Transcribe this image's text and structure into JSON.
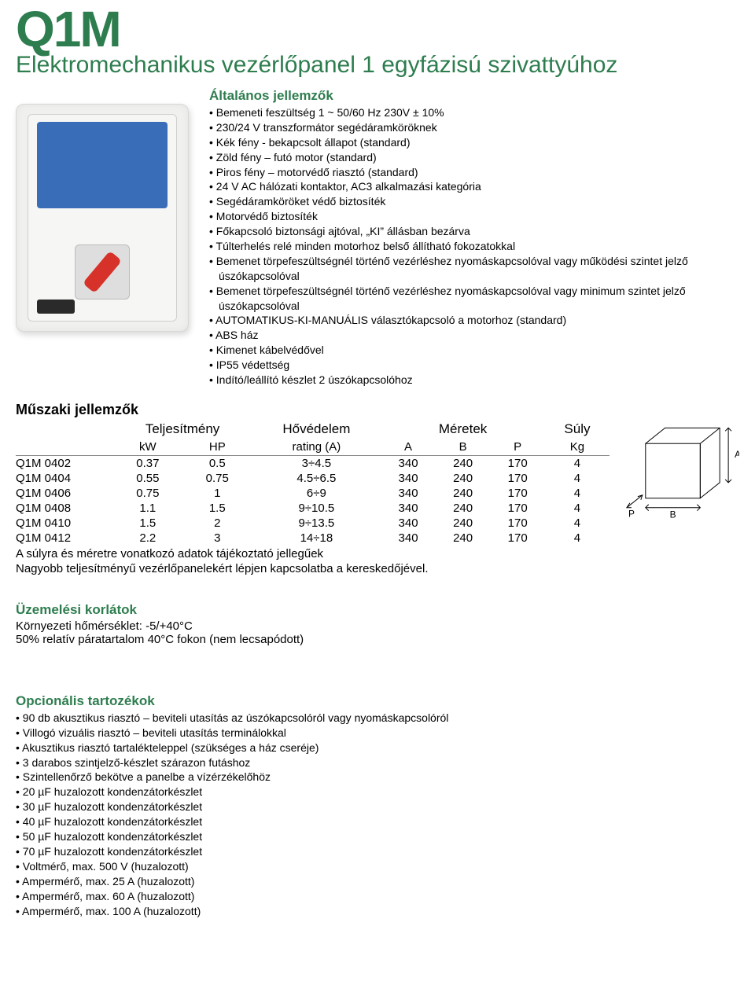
{
  "colors": {
    "accent": "#2e7d4f",
    "text": "#000000",
    "bg": "#ffffff",
    "table_rule": "#888888"
  },
  "title": "Q1M",
  "subtitle": "Elektromechanikus vezérlőpanel 1 egyfázisú szivattyúhoz",
  "general": {
    "heading": "Általános jellemzők",
    "items": [
      "Bemeneti feszültség 1 ~ 50/60 Hz 230V ± 10%",
      "230/24 V transzformátor segédáramköröknek",
      "Kék fény - bekapcsolt állapot (standard)",
      "Zöld fény – futó motor (standard)",
      "Piros fény – motorvédő riasztó (standard)",
      "24 V AC hálózati kontaktor, AC3 alkalmazási kategória",
      "Segédáramköröket védő biztosíték",
      "Motorvédő biztosíték",
      "Főkapcsoló biztonsági ajtóval, „KI” állásban bezárva",
      "Túlterhelés relé minden motorhoz belső állítható fokozatokkal",
      "Bemenet törpefeszültségnél történő vezérléshez nyomáskapcsolóval vagy működési szintet jelző úszókapcsolóval",
      "Bemenet törpefeszültségnél történő vezérléshez nyomáskapcsolóval vagy minimum szintet jelző úszókapcsolóval",
      "AUTOMATIKUS-KI-MANUÁLIS választókapcsoló a motorhoz (standard)",
      "ABS ház",
      "Kimenet kábelvédővel",
      "IP55 védettség",
      "Indító/leállító készlet 2 úszókapcsolóhoz"
    ]
  },
  "tech": {
    "heading": "Műszaki jellemzők",
    "group_headers": {
      "model": "",
      "power": "Teljesítmény",
      "thermal": "Hővédelem",
      "dims": "Méretek",
      "weight": "Súly"
    },
    "unit_headers": {
      "model": "",
      "kw": "kW",
      "hp": "HP",
      "rating": "rating (A)",
      "a": "A",
      "b": "B",
      "p": "P",
      "kg": "Kg"
    },
    "rows": [
      {
        "model": "Q1M 0402",
        "kw": "0.37",
        "hp": "0.5",
        "rating": "3÷4.5",
        "a": "340",
        "b": "240",
        "p": "170",
        "kg": "4"
      },
      {
        "model": "Q1M 0404",
        "kw": "0.55",
        "hp": "0.75",
        "rating": "4.5÷6.5",
        "a": "340",
        "b": "240",
        "p": "170",
        "kg": "4"
      },
      {
        "model": "Q1M 0406",
        "kw": "0.75",
        "hp": "1",
        "rating": "6÷9",
        "a": "340",
        "b": "240",
        "p": "170",
        "kg": "4"
      },
      {
        "model": "Q1M 0408",
        "kw": "1.1",
        "hp": "1.5",
        "rating": "9÷10.5",
        "a": "340",
        "b": "240",
        "p": "170",
        "kg": "4"
      },
      {
        "model": "Q1M 0410",
        "kw": "1.5",
        "hp": "2",
        "rating": "9÷13.5",
        "a": "340",
        "b": "240",
        "p": "170",
        "kg": "4"
      },
      {
        "model": "Q1M 0412",
        "kw": "2.2",
        "hp": "3",
        "rating": "14÷18",
        "a": "340",
        "b": "240",
        "p": "170",
        "kg": "4"
      }
    ],
    "note1": "A súlyra és méretre vonatkozó adatok tájékoztató jellegűek",
    "note2": "Nagyobb teljesítményű vezérlőpanelekért lépjen kapcsolatba a kereskedőjével.",
    "diagram": {
      "labels": {
        "a": "A",
        "b": "B",
        "p": "P"
      }
    }
  },
  "limits": {
    "heading": "Üzemelési korlátok",
    "lines": [
      "Környezeti hőmérséklet: -5/+40°C",
      "50% relatív páratartalom 40°C fokon (nem lecsapódott)"
    ]
  },
  "options": {
    "heading": "Opcionális tartozékok",
    "items": [
      "90 db akusztikus riasztó – beviteli utasítás az úszókapcsolóról vagy nyomáskapcsolóról",
      "Villogó vizuális riasztó – beviteli utasítás terminálokkal",
      "Akusztikus riasztó tartalékteleppel (szükséges a ház cseréje)",
      "3 darabos szintjelző-készlet szárazon futáshoz",
      "Szintellenőrző bekötve a panelbe a vízérzékelőhöz",
      "20 µF huzalozott kondenzátorkészlet",
      "30 µF huzalozott kondenzátorkészlet",
      "40 µF huzalozott kondenzátorkészlet",
      "50 µF huzalozott kondenzátorkészlet",
      "70 µF huzalozott kondenzátorkészlet",
      "Voltmérő, max. 500 V (huzalozott)",
      "Ampermérő, max. 25 A (huzalozott)",
      "Ampermérő, max. 60 A (huzalozott)",
      "Ampermérő, max. 100 A (huzalozott)"
    ]
  }
}
